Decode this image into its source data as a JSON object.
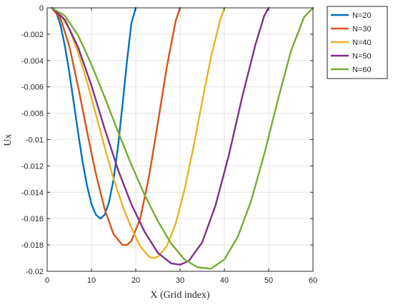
{
  "chart_data": {
    "type": "line",
    "title": "",
    "xlabel": "X (Grid index)",
    "ylabel": "Ux",
    "xlim": [
      0,
      60
    ],
    "ylim": [
      -0.02,
      0
    ],
    "x_ticks": [
      0,
      10,
      20,
      30,
      40,
      50,
      60
    ],
    "y_ticks": [
      0,
      -0.002,
      -0.004,
      -0.006,
      -0.008,
      -0.01,
      -0.012,
      -0.014,
      -0.016,
      -0.018,
      -0.02
    ],
    "x_tick_labels": [
      "0",
      "10",
      "20",
      "30",
      "40",
      "50",
      "60"
    ],
    "y_tick_labels": [
      "0",
      "-0.002",
      "-0.004",
      "-0.006",
      "-0.008",
      "-0.01",
      "-0.012",
      "-0.014",
      "-0.016",
      "-0.018",
      "-0.02"
    ],
    "grid": true,
    "legend_position": "outside-top-right",
    "series": [
      {
        "name": "N=20",
        "color": "#0072BD",
        "x": [
          1,
          2,
          3,
          4,
          5,
          6,
          7,
          8,
          9,
          10,
          11,
          12,
          13,
          14,
          15,
          16,
          17,
          18,
          19,
          20
        ],
        "y": [
          0,
          -0.0003,
          -0.0013,
          -0.0029,
          -0.0049,
          -0.0072,
          -0.0095,
          -0.0117,
          -0.0135,
          -0.0149,
          -0.0157,
          -0.016,
          -0.0157,
          -0.0147,
          -0.013,
          -0.0105,
          -0.0074,
          -0.0041,
          -0.0012,
          0
        ]
      },
      {
        "name": "N=30",
        "color": "#D95319",
        "x": [
          1,
          3,
          5,
          7,
          9,
          11,
          13,
          15,
          17,
          18,
          19,
          21,
          23,
          25,
          27,
          29,
          30
        ],
        "y": [
          0,
          -0.0008,
          -0.0029,
          -0.006,
          -0.0094,
          -0.0126,
          -0.0153,
          -0.0172,
          -0.018,
          -0.018,
          -0.0177,
          -0.016,
          -0.0128,
          -0.0087,
          -0.0045,
          -0.001,
          0
        ]
      },
      {
        "name": "N=40",
        "color": "#EDB120",
        "x": [
          1,
          3,
          5,
          7,
          9,
          11,
          13,
          15,
          17,
          19,
          21,
          23,
          24,
          25,
          27,
          29,
          31,
          33,
          35,
          37,
          39,
          40
        ],
        "y": [
          0,
          -0.0005,
          -0.0016,
          -0.0034,
          -0.0056,
          -0.0081,
          -0.0106,
          -0.013,
          -0.015,
          -0.0167,
          -0.0181,
          -0.0189,
          -0.019,
          -0.0189,
          -0.0181,
          -0.0164,
          -0.0138,
          -0.0106,
          -0.0071,
          -0.0037,
          -0.001,
          0
        ]
      },
      {
        "name": "N=50",
        "color": "#7E2F8E",
        "x": [
          1,
          4,
          7,
          10,
          13,
          16,
          19,
          22,
          25,
          28,
          30,
          32,
          35,
          38,
          41,
          44,
          47,
          49,
          50
        ],
        "y": [
          0,
          -0.0009,
          -0.003,
          -0.0059,
          -0.0092,
          -0.0123,
          -0.0149,
          -0.017,
          -0.0186,
          -0.0194,
          -0.0195,
          -0.0192,
          -0.0178,
          -0.015,
          -0.0112,
          -0.0068,
          -0.0028,
          -0.0006,
          0
        ]
      },
      {
        "name": "N=60",
        "color": "#77AC30",
        "x": [
          1,
          4,
          7,
          10,
          13,
          16,
          19,
          22,
          25,
          28,
          31,
          34,
          37,
          40,
          43,
          46,
          49,
          52,
          55,
          58,
          60
        ],
        "y": [
          0,
          -0.0006,
          -0.0021,
          -0.0043,
          -0.0068,
          -0.0094,
          -0.0119,
          -0.0142,
          -0.0162,
          -0.0179,
          -0.0191,
          -0.0197,
          -0.0198,
          -0.0191,
          -0.0174,
          -0.0147,
          -0.0111,
          -0.0071,
          -0.0033,
          -0.0007,
          0
        ]
      }
    ]
  }
}
